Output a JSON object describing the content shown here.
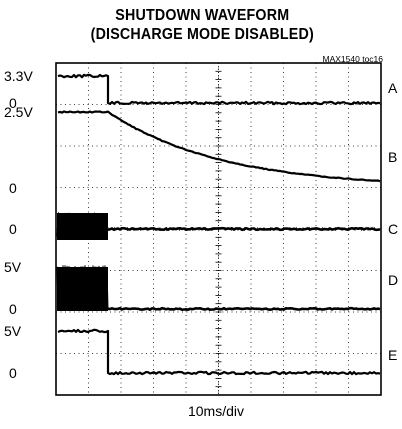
{
  "chart_data": {
    "type": "line",
    "title": "SHUTDOWN WAVEFORM",
    "subtitle": "(DISCHARGE MODE DISABLED)",
    "tag": "MAX1540  toc16",
    "xlabel": "10ms/div",
    "x_divisions": 10,
    "y_divisions": 8,
    "grid": true,
    "shutdown_time_div": 1.6,
    "traces": [
      {
        "name": "A",
        "level_labels": [
          "3.3V",
          "0"
        ],
        "high": 3.3,
        "low": 0,
        "unit": "V",
        "shape": "step"
      },
      {
        "name": "B",
        "level_labels": [
          "2.5V",
          "0"
        ],
        "high": 2.5,
        "low": 0,
        "unit": "V",
        "shape": "decay",
        "decay_tau_div": 3.5
      },
      {
        "name": "C",
        "level_labels": [
          "0"
        ],
        "high": 0,
        "low": 0,
        "unit": "V",
        "shape": "noise-burst"
      },
      {
        "name": "D",
        "level_labels": [
          "5V",
          "0"
        ],
        "high": 5,
        "low": 0,
        "unit": "V",
        "shape": "switching-burst"
      },
      {
        "name": "E",
        "level_labels": [
          "5V",
          "0"
        ],
        "high": 5,
        "low": 0,
        "unit": "V",
        "shape": "step"
      }
    ]
  }
}
